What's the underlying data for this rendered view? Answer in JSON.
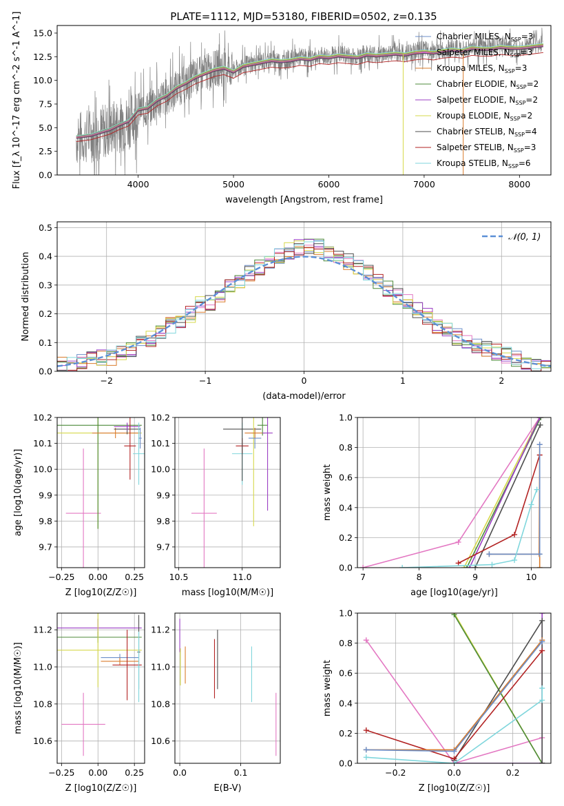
{
  "title": "PLATE=1112, MJD=53180, FIBERID=0502, z=0.135",
  "colors": {
    "axis": "#000000",
    "grid": "#b0b0b0",
    "spectrum": "#808080",
    "normal_curve": "#5b8fd6"
  },
  "chart_data": [
    {
      "id": "spectrum",
      "type": "line",
      "xlabel": "wavelength [Angstrom, rest frame]",
      "ylabel": "Flux [f_λ 10^-17 erg cm^-2 s^-1 A^-1]",
      "xlim": [
        3150,
        8330
      ],
      "ylim": [
        0,
        15.8
      ],
      "xticks": [
        4000,
        5000,
        6000,
        7000,
        8000
      ],
      "yticks": [
        0.0,
        2.5,
        5.0,
        7.5,
        10.0,
        12.5,
        15.0
      ],
      "grid": false,
      "legend_position": "top-right",
      "data_series": {
        "name": "",
        "color": "#808080",
        "x": [
          3350,
          3500,
          3600,
          3700,
          3800,
          3900,
          4000,
          4100,
          4200,
          4300,
          4400,
          4500,
          4600,
          4700,
          4800,
          4900,
          5000,
          5100,
          5200,
          5300,
          5400,
          5500,
          5600,
          5700,
          5800,
          5900,
          6000,
          6100,
          6200,
          6300,
          6400,
          6500,
          6600,
          6700,
          6800,
          6900,
          7000,
          7100,
          7200,
          7300,
          7400,
          7500,
          7600,
          7700,
          7800,
          7900,
          8000,
          8100,
          8250
        ],
        "y": [
          3.8,
          4.2,
          4.5,
          4.8,
          5.3,
          5.6,
          6.8,
          7.0,
          7.8,
          8.3,
          9.2,
          9.6,
          10.4,
          10.8,
          11.2,
          11.5,
          11.0,
          11.6,
          11.8,
          12.0,
          12.3,
          12.0,
          12.2,
          12.5,
          12.3,
          12.6,
          12.5,
          12.8,
          12.6,
          12.5,
          12.9,
          12.7,
          12.8,
          13.0,
          12.8,
          13.1,
          13.2,
          13.0,
          13.2,
          13.4,
          13.2,
          13.6,
          13.5,
          13.4,
          13.8,
          13.6,
          13.5,
          13.7,
          14.0
        ]
      },
      "model_x": [
        3350,
        3500,
        3600,
        3700,
        3800,
        3900,
        4000,
        4100,
        4200,
        4300,
        4400,
        4500,
        4600,
        4700,
        4800,
        4900,
        5000,
        5100,
        5200,
        5300,
        5400,
        5500,
        5600,
        5700,
        5800,
        5900,
        6000,
        6100,
        6200,
        6300,
        6400,
        6500,
        6600,
        6700,
        6800,
        6900,
        7000,
        7100,
        7200,
        7300,
        7400,
        7500,
        7600,
        7700,
        7800,
        7900,
        8000,
        8100,
        8250
      ],
      "model_y": [
        4.0,
        4.2,
        4.5,
        4.8,
        5.3,
        5.7,
        6.9,
        7.1,
        7.9,
        8.4,
        9.2,
        9.7,
        10.3,
        10.7,
        11.1,
        11.3,
        10.9,
        11.5,
        11.7,
        11.9,
        12.1,
        12.0,
        12.1,
        12.3,
        12.2,
        12.5,
        12.4,
        12.6,
        12.5,
        12.4,
        12.7,
        12.6,
        12.7,
        12.8,
        12.7,
        12.9,
        13.0,
        12.9,
        13.1,
        13.2,
        13.1,
        13.4,
        13.3,
        13.3,
        13.5,
        13.4,
        13.4,
        13.5,
        13.7
      ],
      "legend": [
        {
          "label": "Chabrier MILES, N_SSP=3",
          "color": "#6b8ec9",
          "offset": 0.0,
          "scale": 1.0
        },
        {
          "label": "Salpeter MILES, N_SSP=3",
          "color": "#e377c2",
          "offset": 0.05,
          "scale": 1.0
        },
        {
          "label": "Kroupa MILES, N_SSP=3",
          "color": "#d97b2b",
          "offset": -0.05,
          "scale": 1.0
        },
        {
          "label": "Chabrier ELODIE, N_SSP=2",
          "color": "#4c8a3a",
          "offset": 0.1,
          "scale": 1.0
        },
        {
          "label": "Salpeter ELODIE, N_SSP=2",
          "color": "#9b3fc4",
          "offset": -0.1,
          "scale": 1.0
        },
        {
          "label": "Kroupa ELODIE, N_SSP=2",
          "color": "#d6d84a",
          "offset": 0.15,
          "scale": 1.0
        },
        {
          "label": "Chabrier STELIB, N_SSP=4",
          "color": "#4d4d4d",
          "offset": -0.15,
          "scale": 1.0
        },
        {
          "label": "Salpeter STELIB, N_SSP=3",
          "color": "#b22222",
          "offset": -0.35,
          "scale": 0.97
        },
        {
          "label": "Kroupa STELIB, N_SSP=6",
          "color": "#7fd6dc",
          "offset": 0.1,
          "scale": 1.01
        }
      ]
    },
    {
      "id": "residual_hist",
      "type": "step",
      "xlabel": "(data-model)/error",
      "ylabel": "Normed distribution",
      "xlim": [
        -2.5,
        2.5
      ],
      "ylim": [
        0,
        0.52
      ],
      "xticks": [
        -2,
        -1,
        0,
        1,
        2
      ],
      "yticks": [
        0.0,
        0.1,
        0.2,
        0.3,
        0.4,
        0.5
      ],
      "grid": true,
      "legend_position": "top-right",
      "normal_label": "𝒩(0, 1)",
      "bin_edges": [
        -2.5,
        -2.4,
        -2.3,
        -2.2,
        -2.1,
        -2.0,
        -1.9,
        -1.8,
        -1.7,
        -1.6,
        -1.5,
        -1.4,
        -1.3,
        -1.2,
        -1.1,
        -1.0,
        -0.9,
        -0.8,
        -0.7,
        -0.6,
        -0.5,
        -0.4,
        -0.3,
        -0.2,
        -0.1,
        0.0,
        0.1,
        0.2,
        0.3,
        0.4,
        0.5,
        0.6,
        0.7,
        0.8,
        0.9,
        1.0,
        1.1,
        1.2,
        1.3,
        1.4,
        1.5,
        1.6,
        1.7,
        1.8,
        1.9,
        2.0,
        2.1,
        2.2,
        2.3,
        2.4,
        2.5
      ],
      "base_values": [
        0.02,
        0.025,
        0.035,
        0.04,
        0.045,
        0.05,
        0.065,
        0.08,
        0.095,
        0.11,
        0.13,
        0.16,
        0.18,
        0.2,
        0.23,
        0.24,
        0.26,
        0.29,
        0.31,
        0.34,
        0.36,
        0.38,
        0.4,
        0.42,
        0.43,
        0.44,
        0.43,
        0.41,
        0.4,
        0.38,
        0.36,
        0.34,
        0.31,
        0.29,
        0.26,
        0.24,
        0.21,
        0.19,
        0.16,
        0.14,
        0.12,
        0.11,
        0.09,
        0.08,
        0.065,
        0.055,
        0.045,
        0.035,
        0.025,
        0.02
      ]
    },
    {
      "id": "age_vs_Z",
      "type": "errorbar",
      "xlabel": "Z [log10(Z/Z☉)]",
      "ylabel": "age  [log10(age/yr)]",
      "xlim": [
        -0.28,
        0.32
      ],
      "ylim": [
        9.62,
        10.2
      ],
      "xticks": [
        -0.25,
        0.0,
        0.25
      ],
      "xtick_labels": [
        "−0.25",
        "0.00",
        "0.25"
      ],
      "yticks": [
        9.7,
        9.8,
        9.9,
        10.0,
        10.1,
        10.2
      ],
      "grid": true,
      "points": [
        {
          "color": "#e377c2",
          "x": -0.1,
          "xerr": 0.12,
          "y": 9.83,
          "yerr": 0.25
        },
        {
          "color": "#d6d84a",
          "x": 0.0,
          "xerr": 0.3,
          "y": 10.14,
          "yerr": 0.37
        },
        {
          "color": "#4c8a3a",
          "x": 0.0,
          "xerr": 0.3,
          "y": 10.17,
          "yerr": 0.4
        },
        {
          "color": "#d97b2b",
          "x": 0.12,
          "xerr": 0.16,
          "y": 10.14,
          "yerr": 0.02
        },
        {
          "color": "#4d4d4d",
          "x": 0.2,
          "xerr": 0.09,
          "y": 10.155,
          "yerr": 0.02
        },
        {
          "color": "#9b3fc4",
          "x": 0.2,
          "xerr": 0.09,
          "y": 10.165,
          "yerr": 0.015
        },
        {
          "color": "#b22222",
          "x": 0.22,
          "xerr": 0.04,
          "y": 10.09,
          "yerr": 0.13
        },
        {
          "color": "#7fd6dc",
          "x": 0.28,
          "xerr": 0.04,
          "y": 10.06,
          "yerr": 0.12
        },
        {
          "color": "#6b8ec9",
          "x": 0.29,
          "xerr": 0.01,
          "y": 10.12,
          "yerr": 0.04
        }
      ]
    },
    {
      "id": "age_vs_mass",
      "type": "errorbar",
      "xlabel": "mass [log10(M/M☉)]",
      "ylabel": "",
      "xlim": [
        10.47,
        11.3
      ],
      "ylim": [
        9.62,
        10.2
      ],
      "xticks": [
        10.5,
        11.0
      ],
      "xtick_labels": [
        "10.5",
        "11.0"
      ],
      "yticks": [
        9.7,
        9.8,
        9.9,
        10.0,
        10.1,
        10.2
      ],
      "grid": true,
      "points": [
        {
          "color": "#e377c2",
          "x": 10.7,
          "xerr": 0.1,
          "y": 9.83,
          "yerr": 0.25
        },
        {
          "color": "#7fd6dc",
          "x": 11.0,
          "xerr": 0.08,
          "y": 10.06,
          "yerr": 0.12
        },
        {
          "color": "#b22222",
          "x": 11.0,
          "xerr": 0.05,
          "y": 10.09,
          "yerr": 0.03
        },
        {
          "color": "#4d4d4d",
          "x": 11.0,
          "xerr": 0.15,
          "y": 10.155,
          "yerr": 0.2
        },
        {
          "color": "#d6d84a",
          "x": 11.09,
          "xerr": 0.02,
          "y": 10.14,
          "yerr": 0.36
        },
        {
          "color": "#6b8ec9",
          "x": 11.1,
          "xerr": 0.05,
          "y": 10.12,
          "yerr": 0.04
        },
        {
          "color": "#d97b2b",
          "x": 11.1,
          "xerr": 0.08,
          "y": 10.14,
          "yerr": 0.02
        },
        {
          "color": "#4c8a3a",
          "x": 11.16,
          "xerr": 0.04,
          "y": 10.17,
          "yerr": 0.04
        },
        {
          "color": "#9b3fc4",
          "x": 11.2,
          "xerr": 0.04,
          "y": 10.14,
          "yerr": 0.3
        }
      ]
    },
    {
      "id": "cumw_vs_age",
      "type": "line",
      "xlabel": "age  [log10(age/yr)]",
      "ylabel": "mass weight",
      "xlim": [
        6.9,
        10.35
      ],
      "ylim": [
        0,
        1
      ],
      "xticks": [
        7,
        8,
        9,
        10
      ],
      "yticks": [
        0.0,
        0.2,
        0.4,
        0.6,
        0.8,
        1.0
      ],
      "grid": true,
      "series": [
        {
          "color": "#e377c2",
          "x": [
            7.0,
            8.7,
            10.15
          ],
          "y": [
            0.0,
            0.17,
            1.0
          ]
        },
        {
          "color": "#d6d84a",
          "x": [
            8.8,
            10.15
          ],
          "y": [
            0.0,
            1.0
          ]
        },
        {
          "color": "#4c8a3a",
          "x": [
            8.85,
            10.17
          ],
          "y": [
            0.0,
            1.0
          ]
        },
        {
          "color": "#9b3fc4",
          "x": [
            8.9,
            10.15
          ],
          "y": [
            0.0,
            1.0
          ]
        },
        {
          "color": "#4d4d4d",
          "x": [
            9.0,
            10.16
          ],
          "y": [
            0.0,
            0.95
          ]
        },
        {
          "color": "#b22222",
          "x": [
            8.7,
            9.7,
            10.15
          ],
          "y": [
            0.03,
            0.22,
            0.75
          ]
        },
        {
          "color": "#d97b2b",
          "x": [
            9.25,
            10.14,
            10.15,
            10.15
          ],
          "y": [
            0.09,
            0.09,
            0.82,
            0.0
          ]
        },
        {
          "color": "#6b8ec9",
          "x": [
            9.25,
            10.15,
            10.15
          ],
          "y": [
            0.09,
            0.09,
            0.82
          ]
        },
        {
          "color": "#7fd6dc",
          "x": [
            7.7,
            9.3,
            9.7,
            10.0,
            10.1
          ],
          "y": [
            0.0,
            0.02,
            0.05,
            0.42,
            0.52
          ]
        }
      ]
    },
    {
      "id": "mass_vs_Z",
      "type": "errorbar",
      "xlabel": "Z [log10(Z/Z☉)]",
      "ylabel": "mass [log10(M/M☉)]",
      "xlim": [
        -0.28,
        0.32
      ],
      "ylim": [
        10.48,
        11.29
      ],
      "xticks": [
        -0.25,
        0.0,
        0.25
      ],
      "xtick_labels": [
        "−0.25",
        "0.00",
        "0.25"
      ],
      "yticks": [
        10.6,
        10.8,
        11.0,
        11.2
      ],
      "grid": true,
      "points": [
        {
          "color": "#e377c2",
          "x": -0.1,
          "xerr": 0.15,
          "y": 10.69,
          "yerr": 0.17
        },
        {
          "color": "#9b3fc4",
          "x": 0.0,
          "xerr": 0.3,
          "y": 11.21,
          "yerr": 0.05
        },
        {
          "color": "#4c8a3a",
          "x": 0.0,
          "xerr": 0.3,
          "y": 11.16,
          "yerr": 0.03
        },
        {
          "color": "#d6d84a",
          "x": 0.0,
          "xerr": 0.3,
          "y": 11.09,
          "yerr": 0.2
        },
        {
          "color": "#6b8ec9",
          "x": 0.15,
          "xerr": 0.13,
          "y": 11.05,
          "yerr": 0.02
        },
        {
          "color": "#d97b2b",
          "x": 0.15,
          "xerr": 0.13,
          "y": 11.03,
          "yerr": 0.02
        },
        {
          "color": "#b22222",
          "x": 0.2,
          "xerr": 0.1,
          "y": 11.01,
          "yerr": 0.19
        },
        {
          "color": "#4d4d4d",
          "x": 0.28,
          "xerr": 0.01,
          "y": 11.08,
          "yerr": 0.2
        },
        {
          "color": "#7fd6dc",
          "x": 0.28,
          "xerr": 0.01,
          "y": 11.0,
          "yerr": 0.19
        }
      ]
    },
    {
      "id": "mass_vs_ebv",
      "type": "errorbar",
      "xlabel": "E(B-V)",
      "ylabel": "",
      "xlim": [
        -0.008,
        0.165
      ],
      "ylim": [
        10.48,
        11.29
      ],
      "xticks": [
        0.0,
        0.1
      ],
      "xtick_labels": [
        "0.0",
        "0.1"
      ],
      "yticks": [
        10.6,
        10.8,
        11.0,
        11.2
      ],
      "grid": true,
      "points": [
        {
          "color": "#9b3fc4",
          "x": 0.0,
          "xerr": 0.0,
          "y": 11.17,
          "yerr": 0.09
        },
        {
          "color": "#d6d84a",
          "x": 0.001,
          "xerr": 0.0,
          "y": 11.0,
          "yerr": 0.1
        },
        {
          "color": "#d97b2b",
          "x": 0.009,
          "xerr": 0.0,
          "y": 11.01,
          "yerr": 0.1
        },
        {
          "color": "#b22222",
          "x": 0.057,
          "xerr": 0.0,
          "y": 10.99,
          "yerr": 0.16
        },
        {
          "color": "#4d4d4d",
          "x": 0.062,
          "xerr": 0.0,
          "y": 11.04,
          "yerr": 0.16
        },
        {
          "color": "#7fd6dc",
          "x": 0.118,
          "xerr": 0.0,
          "y": 10.96,
          "yerr": 0.15
        },
        {
          "color": "#e377c2",
          "x": 0.158,
          "xerr": 0.0,
          "y": 10.69,
          "yerr": 0.17
        }
      ]
    },
    {
      "id": "cumw_vs_Z",
      "type": "line",
      "xlabel": "Z [log10(Z/Z☉)]",
      "ylabel": "mass weight",
      "xlim": [
        -0.33,
        0.33
      ],
      "ylim": [
        0,
        1
      ],
      "xticks": [
        -0.2,
        0.0,
        0.2
      ],
      "xtick_labels": [
        "−0.2",
        "0.0",
        "0.2"
      ],
      "yticks": [
        0.0,
        0.2,
        0.4,
        0.6,
        0.8,
        1.0
      ],
      "grid": true,
      "series": [
        {
          "color": "#e377c2",
          "x": [
            -0.3,
            0.0,
            0.3
          ],
          "y": [
            0.82,
            0.0,
            0.17
          ]
        },
        {
          "color": "#d6d84a",
          "x": [
            0.0,
            0.3
          ],
          "y": [
            1.0,
            0.0
          ]
        },
        {
          "color": "#4c8a3a",
          "x": [
            0.0,
            0.3
          ],
          "y": [
            0.99,
            0.0
          ]
        },
        {
          "color": "#9b3fc4",
          "x": [
            0.0,
            0.3,
            0.3
          ],
          "y": [
            0.0,
            0.0,
            1.0
          ]
        },
        {
          "color": "#4d4d4d",
          "x": [
            0.0,
            0.3,
            0.3
          ],
          "y": [
            0.02,
            0.95,
            0.0
          ]
        },
        {
          "color": "#b22222",
          "x": [
            -0.3,
            0.0,
            0.3
          ],
          "y": [
            0.22,
            0.03,
            0.75
          ]
        },
        {
          "color": "#d97b2b",
          "x": [
            -0.3,
            0.0,
            0.3
          ],
          "y": [
            0.09,
            0.09,
            0.82
          ]
        },
        {
          "color": "#6b8ec9",
          "x": [
            -0.3,
            0.0,
            0.3
          ],
          "y": [
            0.09,
            0.08,
            0.81
          ]
        },
        {
          "color": "#7fd6dc",
          "x": [
            -0.3,
            0.0,
            0.3,
            0.3
          ],
          "y": [
            0.04,
            0.0,
            0.42,
            0.5
          ]
        }
      ]
    }
  ]
}
